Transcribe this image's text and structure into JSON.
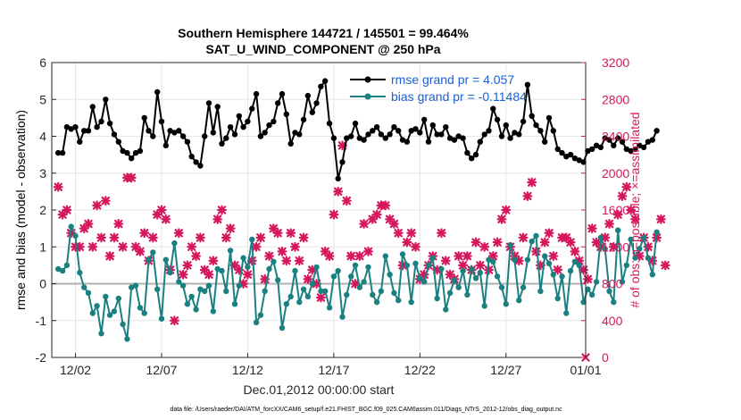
{
  "chart_data": {
    "type": "line",
    "title": "Southern Hemisphere 144721 / 145501 = 99.464%",
    "subtitle": "SAT_U_WIND_COMPONENT @ 250 hPa",
    "xlabel": "Dec.01,2012 00:00:00 start",
    "ylabel": "rmse and bias (model - observation)",
    "ylabel_right": "# of obs: o=possible; ×=assimilated",
    "footnote": "data file: /Users/raeder/DAI/ATM_forcXX/CAM6_setup/f.e21.FHIST_BGC.f09_025.CAM6assim.011/Diags_NTrS_2012-12/obs_diag_output.nc",
    "x_range": [
      0.5,
      31.5
    ],
    "ylim": [
      -2,
      6
    ],
    "ylim_right": [
      0,
      3200
    ],
    "xticks": [
      1.875,
      6.875,
      11.875,
      16.875,
      21.875,
      26.875,
      31.875
    ],
    "xtick_labels": [
      "12/02",
      "12/07",
      "12/12",
      "12/17",
      "12/22",
      "12/27",
      "01/01"
    ],
    "yticks": [
      -2,
      -1,
      0,
      1,
      2,
      3,
      4,
      5,
      6
    ],
    "yticks_right": [
      0,
      400,
      800,
      1200,
      1600,
      2000,
      2400,
      2800,
      3200
    ],
    "zero_line": 0,
    "colors": {
      "rmse": "#000000",
      "bias": "#1a8080",
      "obs": "#d6175d",
      "legend_text": "#1a5fd6",
      "zero_line": "#b0b0b0"
    },
    "legend": [
      {
        "label": "rmse grand pr = 4.057",
        "color": "#000000"
      },
      {
        "label": "bias grand pr = -0.11484",
        "color": "#1a8080"
      }
    ],
    "series": [
      {
        "name": "rmse",
        "x_start": 0.875,
        "x_step": 0.25,
        "values": [
          3.55,
          3.55,
          4.25,
          4.2,
          4.25,
          3.85,
          4.15,
          4.15,
          4.8,
          4.25,
          4.4,
          5.0,
          4.35,
          4.05,
          3.85,
          3.6,
          3.55,
          3.4,
          3.55,
          3.6,
          4.5,
          4.15,
          4.0,
          5.2,
          4.4,
          3.75,
          4.15,
          4.1,
          4.15,
          4.0,
          3.85,
          3.45,
          3.3,
          3.2,
          4.0,
          4.9,
          4.1,
          4.8,
          3.8,
          3.95,
          4.25,
          4.05,
          4.55,
          4.25,
          4.4,
          4.75,
          5.15,
          4.0,
          4.1,
          4.3,
          4.4,
          4.9,
          5.15,
          4.6,
          3.8,
          4.1,
          4.05,
          4.45,
          5.1,
          4.65,
          4.9,
          5.35,
          5.5,
          4.35,
          3.95,
          2.85,
          3.3,
          3.95,
          4.0,
          4.35,
          3.95,
          3.9,
          4.05,
          4.15,
          4.25,
          4.05,
          3.95,
          4.05,
          4.25,
          4.15,
          3.9,
          3.85,
          4.15,
          4.2,
          4.1,
          4.45,
          3.85,
          4.3,
          4.05,
          4.05,
          4.25,
          3.95,
          3.9,
          4.0,
          3.95,
          3.55,
          3.4,
          3.5,
          3.85,
          4.05,
          4.15,
          4.75,
          4.45,
          4.0,
          4.3,
          3.95,
          4.1,
          4.05,
          4.4,
          5.4,
          4.55,
          4.3,
          4.15,
          3.85,
          4.5,
          4.15,
          3.65,
          3.55,
          3.45,
          3.5,
          3.4,
          3.35,
          3.3,
          3.6,
          3.65,
          3.75,
          3.7,
          3.95,
          3.9,
          3.75,
          3.95,
          3.85,
          3.65,
          3.6,
          3.65,
          3.75,
          3.7,
          3.85,
          3.9,
          4.15
        ]
      },
      {
        "name": "bias",
        "x_start": 0.875,
        "x_step": 0.25,
        "values": [
          0.4,
          0.35,
          0.5,
          1.55,
          1.3,
          0.3,
          -0.1,
          -0.25,
          -0.8,
          -0.6,
          -1.35,
          -0.35,
          -0.85,
          -0.75,
          -0.4,
          -1.1,
          -1.5,
          -0.1,
          -0.05,
          -0.65,
          -0.8,
          0.65,
          0.85,
          -0.15,
          -0.95,
          0.65,
          0.3,
          1.1,
          0.05,
          -0.05,
          -0.55,
          -0.35,
          -0.7,
          -0.15,
          -0.2,
          -0.05,
          -0.75,
          0.4,
          0.35,
          -0.2,
          0.9,
          -0.55,
          -0.05,
          0.7,
          0.45,
          1.2,
          -1.05,
          -0.85,
          -0.2,
          0.4,
          0.6,
          0.1,
          -1.2,
          -0.55,
          -0.35,
          0.35,
          -0.5,
          -0.15,
          -0.35,
          0.0,
          0.45,
          -0.2,
          -0.2,
          -0.65,
          0.2,
          0.35,
          -0.9,
          -0.3,
          0.2,
          0.5,
          -0.1,
          0.05,
          0.45,
          -0.3,
          -0.5,
          -0.2,
          0.75,
          0.25,
          -0.25,
          -0.45,
          0.8,
          0.5,
          -0.5,
          0.55,
          0.15,
          0.05,
          0.5,
          0.7,
          -0.4,
          0.4,
          -0.7,
          -0.25,
          0.1,
          -0.1,
          0.35,
          -0.3,
          0.4,
          0.15,
          0.3,
          -0.6,
          0.65,
          0.6,
          0.2,
          -0.1,
          -0.55,
          1.05,
          0.65,
          -0.45,
          -0.1,
          0.65,
          1.15,
          1.3,
          -0.2,
          0.75,
          0.55,
          0.25,
          -0.4,
          0.2,
          -0.8,
          0.35,
          0.6,
          0.5,
          -0.5,
          -0.15,
          -0.3,
          0.05,
          1.25,
          0.95,
          -0.2,
          -0.5,
          1.45,
          0.05,
          0.5,
          1.2,
          0.7,
          0.95,
          1.25,
          0.7,
          0.25,
          1.4
        ]
      },
      {
        "name": "obs",
        "x_start": 0.875,
        "x_step": 0.25,
        "values": [
          1850,
          1550,
          1600,
          1350,
          1200,
          1200,
          1400,
          1450,
          1200,
          1650,
          1300,
          1700,
          1100,
          1300,
          1450,
          1200,
          1950,
          1950,
          1200,
          1150,
          1350,
          1050,
          1300,
          1550,
          1600,
          1500,
          950,
          400,
          1350,
          900,
          1000,
          1200,
          1100,
          1300,
          950,
          900,
          1050,
          1500,
          1600,
          1300,
          1400,
          1000,
          950,
          800,
          900,
          1050,
          1200,
          1300,
          850,
          1100,
          1400,
          1350,
          1150,
          1050,
          1350,
          1200,
          1050,
          1300,
          850,
          950,
          800,
          650,
          1150,
          1100,
          1550,
          1800,
          2300,
          1700,
          1100,
          800,
          1100,
          1450,
          1150,
          1500,
          1550,
          1650,
          1650,
          1500,
          1450,
          1350,
          1000,
          1250,
          1350,
          1200,
          850,
          900,
          1000,
          1100,
          950,
          1350,
          1050,
          900,
          850,
          1100,
          1000,
          1100,
          950,
          1250,
          1000,
          1200,
          950,
          1100,
          1250,
          1500,
          1600,
          1200,
          1100,
          1050,
          1300,
          1750,
          1900,
          1150,
          1000,
          1250,
          1350,
          1100,
          950,
          1300,
          1300,
          1250,
          1150,
          1050,
          950,
          850,
          1400,
          1250,
          1200,
          1300,
          1450,
          1200,
          1550,
          1750,
          1850,
          1600,
          1500,
          1100,
          1300,
          1200,
          1050,
          1300,
          1500,
          1000
        ]
      }
    ]
  }
}
